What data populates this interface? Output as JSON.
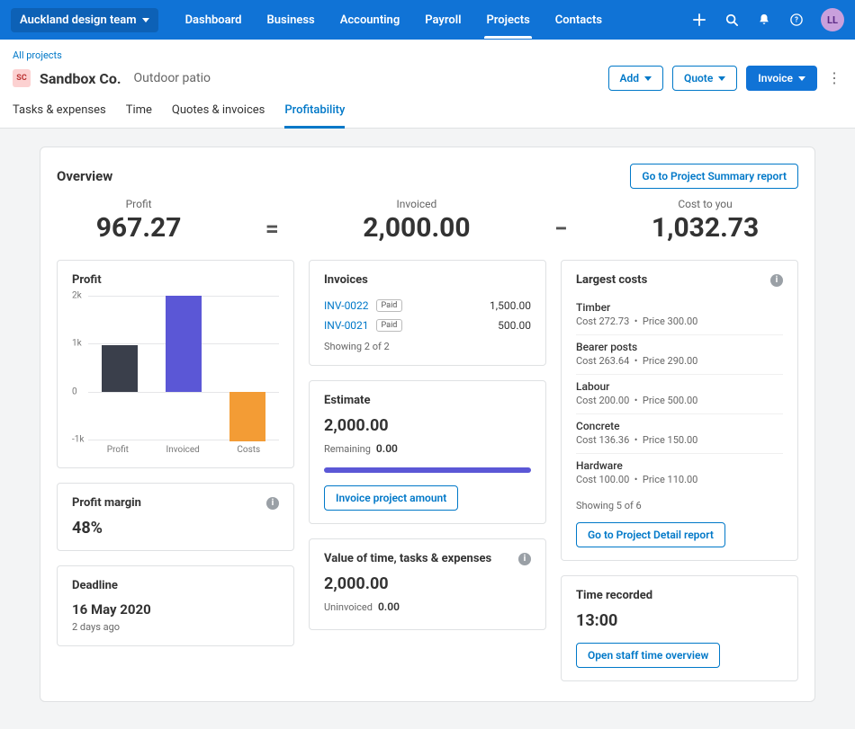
{
  "topnav": {
    "org": "Auckland design team",
    "items": [
      "Dashboard",
      "Business",
      "Accounting",
      "Payroll",
      "Projects",
      "Contacts"
    ],
    "active_index": 4,
    "avatar_initials": "LL",
    "colors": {
      "bg": "#1073d6",
      "avatar_bg": "#c9a0dc",
      "avatar_fg": "#5b2a86"
    }
  },
  "project": {
    "crumb": "All projects",
    "badge": "SC",
    "company": "Sandbox Co.",
    "name": "Outdoor patio",
    "actions": {
      "add": "Add",
      "quote": "Quote",
      "invoice": "Invoice"
    }
  },
  "subtabs": {
    "items": [
      "Tasks & expenses",
      "Time",
      "Quotes & invoices",
      "Profitability"
    ],
    "active_index": 3
  },
  "overview": {
    "title": "Overview",
    "summary_btn": "Go to Project Summary report",
    "equation": {
      "profit": {
        "label": "Profit",
        "value": "967.27"
      },
      "invoiced": {
        "label": "Invoiced",
        "value": "2,000.00"
      },
      "cost": {
        "label": "Cost to you",
        "value": "1,032.73"
      }
    }
  },
  "profit_chart": {
    "title": "Profit",
    "type": "bar",
    "y_min": -1000,
    "y_max": 2000,
    "y_step": 1000,
    "y_tick_labels": [
      "-1k",
      "0",
      "1k",
      "2k"
    ],
    "categories": [
      "Profit",
      "Invoiced",
      "Costs"
    ],
    "values": [
      967.27,
      2000,
      -1032.73
    ],
    "bar_colors": [
      "#3a3f4b",
      "#5b57d6",
      "#f39c35"
    ],
    "grid_color": "#e5e6e8",
    "label_fontsize": 10
  },
  "profit_margin": {
    "title": "Profit margin",
    "value": "48%"
  },
  "deadline": {
    "title": "Deadline",
    "date": "16 May 2020",
    "relative": "2 days ago"
  },
  "invoices": {
    "title": "Invoices",
    "rows": [
      {
        "ref": "INV-0022",
        "status": "Paid",
        "amount": "1,500.00"
      },
      {
        "ref": "INV-0021",
        "status": "Paid",
        "amount": "500.00"
      }
    ],
    "footer": "Showing 2 of 2"
  },
  "estimate": {
    "title": "Estimate",
    "total": "2,000.00",
    "remaining_label": "Remaining",
    "remaining_value": "0.00",
    "progress_pct": 100,
    "progress_color": "#5b57d6",
    "button": "Invoice project amount"
  },
  "value_panel": {
    "title": "Value of time, tasks & expenses",
    "total": "2,000.00",
    "uninvoiced_label": "Uninvoiced",
    "uninvoiced_value": "0.00"
  },
  "largest_costs": {
    "title": "Largest costs",
    "rows": [
      {
        "name": "Timber",
        "cost": "272.73",
        "price": "300.00"
      },
      {
        "name": "Bearer posts",
        "cost": "263.64",
        "price": "290.00"
      },
      {
        "name": "Labour",
        "cost": "200.00",
        "price": "500.00"
      },
      {
        "name": "Concrete",
        "cost": "136.36",
        "price": "150.00"
      },
      {
        "name": "Hardware",
        "cost": "100.00",
        "price": "110.00"
      }
    ],
    "footer": "Showing 5 of 6",
    "button": "Go to Project Detail report",
    "cost_prefix": "Cost ",
    "price_prefix": "Price "
  },
  "time_recorded": {
    "title": "Time recorded",
    "value": "13:00",
    "button": "Open staff time overview"
  }
}
